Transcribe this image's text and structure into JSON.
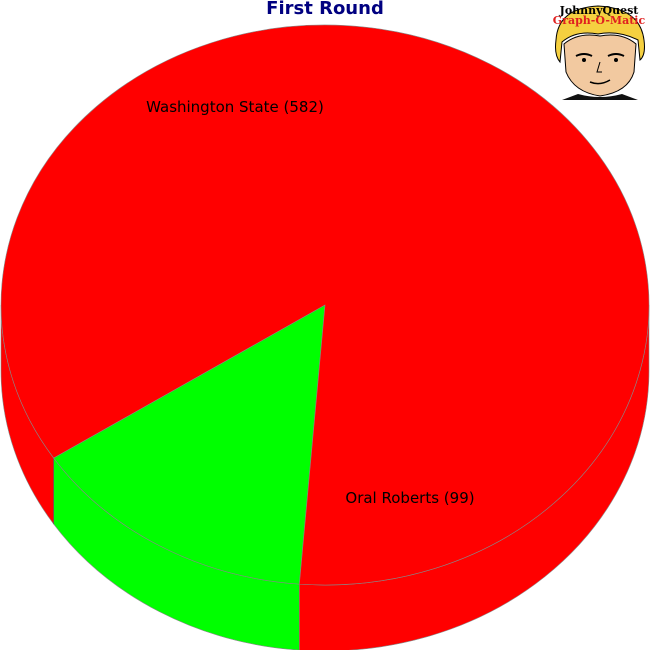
{
  "chart_data": {
    "type": "pie",
    "title": "First Round",
    "slices": [
      {
        "label": "Washington State (582)",
        "value": 582,
        "color": "#ff0000"
      },
      {
        "label": "Oral Roberts (99)",
        "value": 99,
        "color": "#00ff00"
      }
    ]
  },
  "logo": {
    "line1": "JohnnyQuest",
    "line2": "Graph-O-Matic"
  }
}
